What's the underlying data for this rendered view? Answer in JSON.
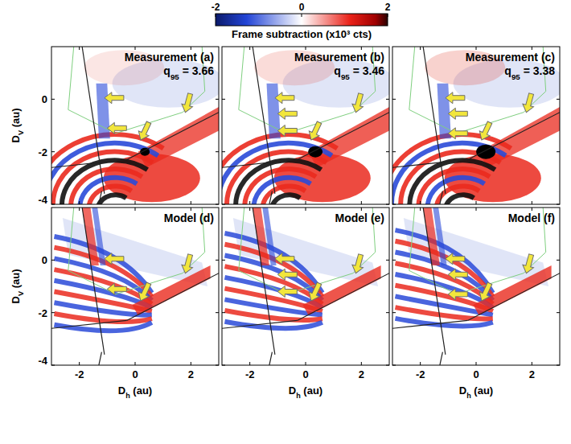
{
  "colorbar": {
    "label": "Frame subtraction (x10³ cts)",
    "range": [
      -2,
      2
    ],
    "ticks": [
      -2,
      0,
      2
    ]
  },
  "chart_data": [
    {
      "type": "image",
      "title": "Measurement (a)",
      "annotation": "q95 = 3.66",
      "ylabel": "DV (au)",
      "xlim": [
        -3,
        3
      ],
      "ylim": [
        -4,
        2
      ],
      "xticks": [
        -2,
        0,
        2
      ],
      "yticks": [
        -4,
        -2,
        0
      ],
      "tick_labels": "y"
    },
    {
      "type": "image",
      "title": "Measurement (b)",
      "annotation": "q95 = 3.46",
      "xlim": [
        -3,
        3
      ],
      "ylim": [
        -4,
        2
      ],
      "xticks": [
        -2,
        0,
        2
      ],
      "yticks": [
        -4,
        -2,
        0
      ],
      "tick_labels": false
    },
    {
      "type": "image",
      "title": "Measurement (c)",
      "annotation": "q95 = 3.38",
      "xlim": [
        -3,
        3
      ],
      "ylim": [
        -4,
        2
      ],
      "xticks": [
        -2,
        0,
        2
      ],
      "yticks": [
        -4,
        -2,
        0
      ],
      "tick_labels": false
    },
    {
      "type": "image",
      "title": "Model (d)",
      "xlabel": "Dh (au)",
      "ylabel": "DV (au)",
      "xlim": [
        -3,
        3
      ],
      "ylim": [
        -4,
        2
      ],
      "xticks": [
        -2,
        0,
        2
      ],
      "yticks": [
        -4,
        -2,
        0
      ],
      "tick_labels": true
    },
    {
      "type": "image",
      "title": "Model (e)",
      "xlabel": "Dh (au)",
      "xlim": [
        -3,
        3
      ],
      "ylim": [
        -4,
        2
      ],
      "xticks": [
        -2,
        0,
        2
      ],
      "yticks": [
        -4,
        -2,
        0
      ],
      "tick_labels": "x"
    },
    {
      "type": "image",
      "title": "Model (f)",
      "xlabel": "Dh (au)",
      "xlim": [
        -3,
        3
      ],
      "ylim": [
        -4,
        2
      ],
      "xticks": [
        -2,
        0,
        2
      ],
      "yticks": [
        -4,
        -2,
        0
      ],
      "tick_labels": "x"
    }
  ]
}
